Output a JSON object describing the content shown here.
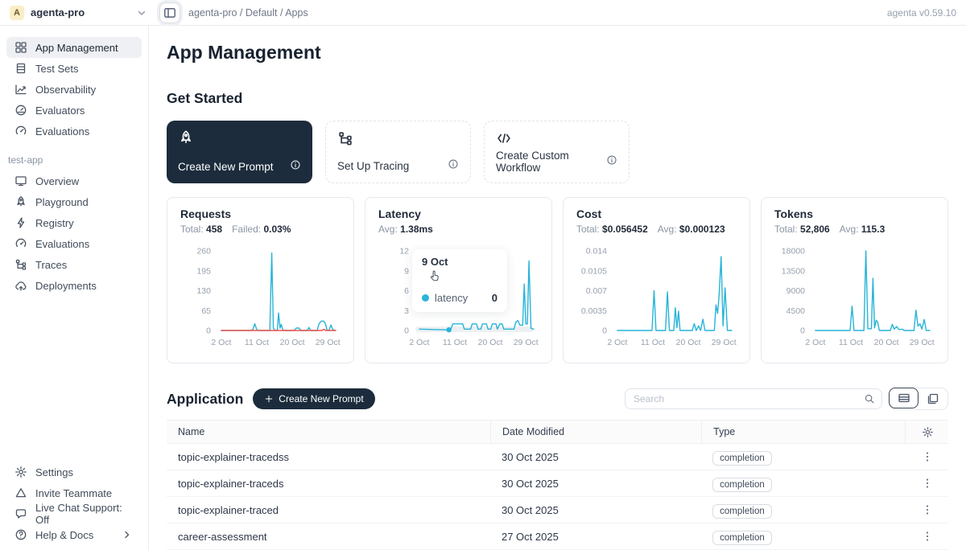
{
  "header": {
    "workspace_initial": "A",
    "workspace": "agenta-pro",
    "breadcrumb": "agenta-pro / Default / Apps",
    "version": "agenta v0.59.10"
  },
  "page": {
    "title": "App Management",
    "get_started_title": "Get Started"
  },
  "sidebar": {
    "main_items": [
      {
        "label": "App Management",
        "icon": "grid",
        "active": true
      },
      {
        "label": "Test Sets",
        "icon": "table",
        "active": false
      },
      {
        "label": "Observability",
        "icon": "trend",
        "active": false
      },
      {
        "label": "Evaluators",
        "icon": "gauge",
        "active": false
      },
      {
        "label": "Evaluations",
        "icon": "speedo",
        "active": false
      }
    ],
    "app_section": {
      "label": "test-app",
      "items": [
        {
          "label": "Overview",
          "icon": "monitor"
        },
        {
          "label": "Playground",
          "icon": "rocket"
        },
        {
          "label": "Registry",
          "icon": "bolt"
        },
        {
          "label": "Evaluations",
          "icon": "speedo"
        },
        {
          "label": "Traces",
          "icon": "tree"
        },
        {
          "label": "Deployments",
          "icon": "cloud"
        }
      ]
    },
    "bottom_items": [
      {
        "label": "Settings",
        "icon": "gear"
      },
      {
        "label": "Invite Teammate",
        "icon": "invite"
      },
      {
        "label": "Live Chat Support: Off",
        "icon": "chat"
      },
      {
        "label": "Help & Docs",
        "icon": "help",
        "trailing_icon": "chev-right"
      }
    ]
  },
  "get_started_cards": [
    {
      "label": "Create New Prompt",
      "icon": "rocket",
      "dark": true
    },
    {
      "label": "Set Up Tracing",
      "icon": "tree",
      "dark": false
    },
    {
      "label": "Create Custom Workflow",
      "icon": "code",
      "dark": false
    }
  ],
  "chart_data": [
    {
      "type": "line",
      "title": "Requests",
      "stats": [
        {
          "label": "Total:",
          "value": "458"
        },
        {
          "label": "Failed:",
          "value": "0.03%"
        }
      ],
      "xlim": [
        1,
        31
      ],
      "ylim": [
        0,
        260
      ],
      "y_ticks": [
        "0",
        "65",
        "130",
        "195",
        "260"
      ],
      "x_ticks": [
        {
          "day": 2,
          "label": "2 Oct"
        },
        {
          "day": 11,
          "label": "11 Oct"
        },
        {
          "day": 20,
          "label": "20 Oct"
        },
        {
          "day": 29,
          "label": "29 Oct"
        }
      ],
      "series": [
        {
          "name": "requests",
          "color": "#27b4d8",
          "points": [
            [
              2,
              0
            ],
            [
              9.5,
              0
            ],
            [
              10,
              3
            ],
            [
              10.5,
              22
            ],
            [
              11,
              2
            ],
            [
              11.5,
              0
            ],
            [
              14.3,
              0
            ],
            [
              14.8,
              253
            ],
            [
              15.2,
              8
            ],
            [
              15.6,
              0
            ],
            [
              16.2,
              0
            ],
            [
              16.5,
              57
            ],
            [
              16.9,
              8
            ],
            [
              17.2,
              20
            ],
            [
              17.6,
              2
            ],
            [
              18,
              0
            ],
            [
              20.5,
              0
            ],
            [
              21,
              8
            ],
            [
              21.7,
              8
            ],
            [
              22.2,
              0
            ],
            [
              23.8,
              0
            ],
            [
              24.2,
              10
            ],
            [
              24.7,
              0
            ],
            [
              26.3,
              0
            ],
            [
              26.8,
              22
            ],
            [
              27.3,
              30
            ],
            [
              27.9,
              31
            ],
            [
              28.4,
              22
            ],
            [
              28.8,
              2
            ],
            [
              29.3,
              0
            ],
            [
              29.8,
              18
            ],
            [
              30.3,
              2
            ],
            [
              31,
              0
            ]
          ]
        },
        {
          "name": "failed",
          "color": "#f0504a",
          "points": [
            [
              2,
              0
            ],
            [
              27.5,
              0
            ],
            [
              28,
              4
            ],
            [
              28.5,
              0
            ],
            [
              31,
              0
            ]
          ]
        }
      ]
    },
    {
      "type": "line",
      "title": "Latency",
      "stats": [
        {
          "label": "Avg:",
          "value": "1.38ms"
        }
      ],
      "xlim": [
        1,
        31
      ],
      "ylim": [
        0,
        12
      ],
      "y_ticks": [
        "0",
        "3",
        "6",
        "9",
        "12"
      ],
      "x_ticks": [
        {
          "day": 2,
          "label": "2 Oct"
        },
        {
          "day": 11,
          "label": "11 Oct"
        },
        {
          "day": 20,
          "label": "20 Oct"
        },
        {
          "day": 29,
          "label": "29 Oct"
        }
      ],
      "hover_band": true,
      "marker": {
        "x": 9.5,
        "y": 0.1
      },
      "tooltip": {
        "date": "9 Oct",
        "series": "latency",
        "value": "0"
      },
      "series": [
        {
          "name": "latency",
          "color": "#27b4d8",
          "points": [
            [
              2,
              0.2
            ],
            [
              9,
              0.1
            ],
            [
              10,
              0.2
            ],
            [
              10.5,
              1
            ],
            [
              13,
              1
            ],
            [
              13.4,
              0.2
            ],
            [
              15,
              0.2
            ],
            [
              15.4,
              1
            ],
            [
              16.5,
              1
            ],
            [
              16.9,
              0.2
            ],
            [
              17.6,
              0.2
            ],
            [
              18,
              1
            ],
            [
              19,
              1
            ],
            [
              19.4,
              0.2
            ],
            [
              20.1,
              0.2
            ],
            [
              20.5,
              1
            ],
            [
              21.4,
              1
            ],
            [
              21.8,
              0.2
            ],
            [
              22.4,
              1
            ],
            [
              23,
              1
            ],
            [
              23.4,
              0.2
            ],
            [
              26,
              0.2
            ],
            [
              26.5,
              1.3
            ],
            [
              27,
              1.5
            ],
            [
              27.5,
              0.8
            ],
            [
              28.2,
              0.8
            ],
            [
              28.6,
              7
            ],
            [
              29,
              1
            ],
            [
              29.4,
              1
            ],
            [
              29.8,
              10.5
            ],
            [
              30.3,
              0.3
            ],
            [
              31,
              0.2
            ]
          ]
        }
      ]
    },
    {
      "type": "line",
      "title": "Cost",
      "stats": [
        {
          "label": "Total:",
          "value": "$0.056452"
        },
        {
          "label": "Avg:",
          "value": "$0.000123"
        }
      ],
      "xlim": [
        1,
        31
      ],
      "ylim": [
        0,
        0.014
      ],
      "y_ticks": [
        "0",
        "0.0035",
        "0.007",
        "0.0105",
        "0.014"
      ],
      "x_ticks": [
        {
          "day": 2,
          "label": "2 Oct"
        },
        {
          "day": 11,
          "label": "11 Oct"
        },
        {
          "day": 20,
          "label": "20 Oct"
        },
        {
          "day": 29,
          "label": "29 Oct"
        }
      ],
      "series": [
        {
          "name": "cost",
          "color": "#27b4d8",
          "points": [
            [
              2,
              0
            ],
            [
              10.8,
              0
            ],
            [
              11.3,
              0.007
            ],
            [
              11.8,
              0
            ],
            [
              14.2,
              0
            ],
            [
              14.7,
              0.0068
            ],
            [
              15.2,
              0
            ],
            [
              16.3,
              0
            ],
            [
              16.7,
              0.004
            ],
            [
              17.1,
              0.0005
            ],
            [
              17.5,
              0.0034
            ],
            [
              17.9,
              0
            ],
            [
              21,
              0
            ],
            [
              21.5,
              0.0012
            ],
            [
              22,
              0
            ],
            [
              22.6,
              0.0008
            ],
            [
              23.1,
              0
            ],
            [
              23.7,
              0.002
            ],
            [
              24.2,
              0
            ],
            [
              26.6,
              0
            ],
            [
              27,
              0.0045
            ],
            [
              27.4,
              0.003
            ],
            [
              27.8,
              0.0062
            ],
            [
              28.3,
              0.013
            ],
            [
              28.8,
              0.0008
            ],
            [
              29.3,
              0.0075
            ],
            [
              29.9,
              0
            ],
            [
              31,
              0
            ]
          ]
        }
      ]
    },
    {
      "type": "line",
      "title": "Tokens",
      "stats": [
        {
          "label": "Total:",
          "value": "52,806"
        },
        {
          "label": "Avg:",
          "value": "115.3"
        }
      ],
      "xlim": [
        1,
        31
      ],
      "ylim": [
        0,
        18000
      ],
      "y_ticks": [
        "0",
        "4500",
        "9000",
        "13500",
        "18000"
      ],
      "x_ticks": [
        {
          "day": 2,
          "label": "2 Oct"
        },
        {
          "day": 11,
          "label": "11 Oct"
        },
        {
          "day": 20,
          "label": "20 Oct"
        },
        {
          "day": 29,
          "label": "29 Oct"
        }
      ],
      "series": [
        {
          "name": "tokens",
          "color": "#27b4d8",
          "points": [
            [
              2,
              0
            ],
            [
              10.8,
              0
            ],
            [
              11.3,
              5500
            ],
            [
              11.8,
              0
            ],
            [
              14.3,
              0
            ],
            [
              14.8,
              18000
            ],
            [
              15.3,
              400
            ],
            [
              16.2,
              400
            ],
            [
              16.6,
              11800
            ],
            [
              17,
              600
            ],
            [
              17.4,
              2300
            ],
            [
              17.8,
              1900
            ],
            [
              18.2,
              0
            ],
            [
              21,
              0
            ],
            [
              21.5,
              1400
            ],
            [
              22,
              300
            ],
            [
              22.6,
              900
            ],
            [
              23.2,
              200
            ],
            [
              24,
              300
            ],
            [
              24.5,
              0
            ],
            [
              27,
              0
            ],
            [
              27.5,
              4600
            ],
            [
              28,
              1000
            ],
            [
              28.5,
              1500
            ],
            [
              29,
              300
            ],
            [
              29.6,
              2500
            ],
            [
              30.1,
              0
            ],
            [
              31,
              0
            ]
          ]
        }
      ]
    }
  ],
  "application": {
    "title": "Application",
    "create_button_label": "Create New Prompt",
    "search_placeholder": "Search",
    "table": {
      "headers": [
        "Name",
        "Date Modified",
        "Type"
      ],
      "rows": [
        {
          "name": "topic-explainer-tracedss",
          "date_modified": "30 Oct 2025",
          "type": "completion"
        },
        {
          "name": "topic-explainer-traceds",
          "date_modified": "30 Oct 2025",
          "type": "completion"
        },
        {
          "name": "topic-explainer-traced",
          "date_modified": "30 Oct 2025",
          "type": "completion"
        },
        {
          "name": "career-assessment",
          "date_modified": "27 Oct 2025",
          "type": "completion"
        }
      ]
    }
  },
  "colors": {
    "accent_cyan": "#27b4d8",
    "failed_red": "#f0504a",
    "dark_navy": "#1c2c3c"
  }
}
